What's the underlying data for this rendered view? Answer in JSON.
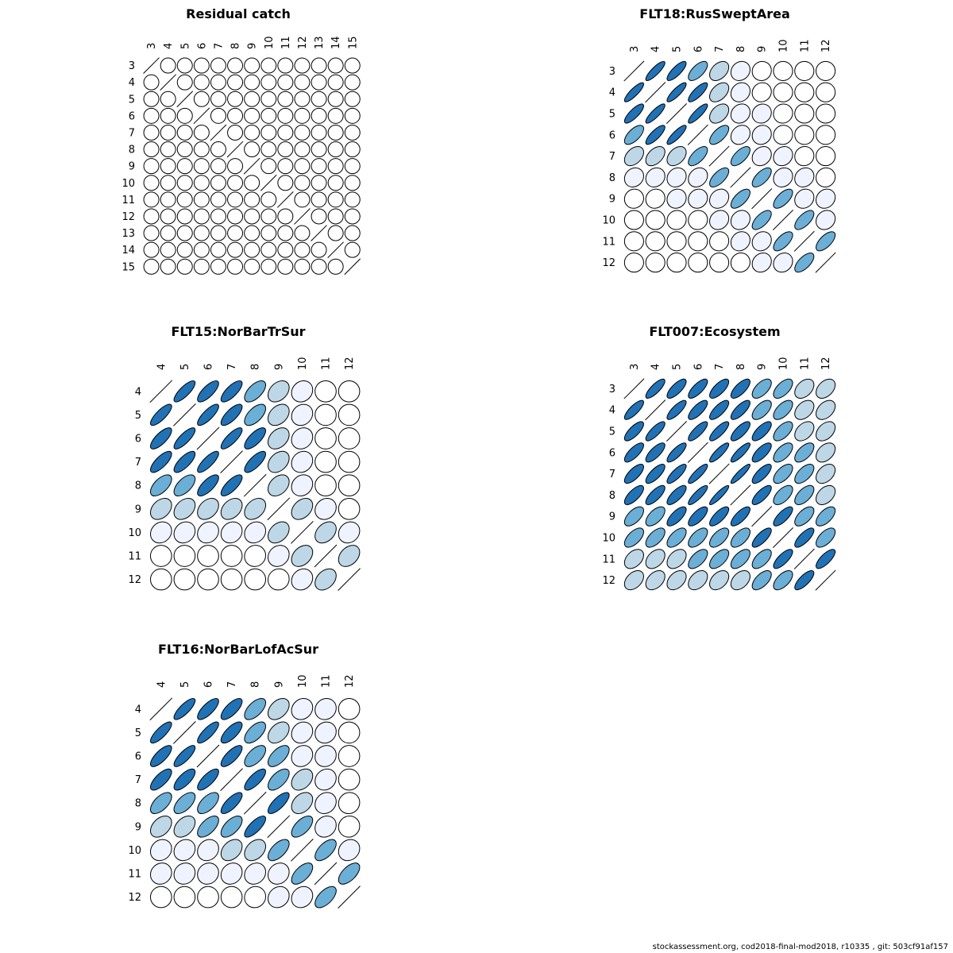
{
  "colors": {
    "0": "#ffffff",
    "1": "#eff3ff",
    "2": "#bdd7e7",
    "3": "#6baed6",
    "4": "#2171b5"
  },
  "footer": "stockassessment.org, cod2018-final-mod2018, r10335 , git: 503cf91af157",
  "chart_data": [
    {
      "type": "heatmap",
      "title": "Residual catch",
      "labels": [
        "3",
        "4",
        "5",
        "6",
        "7",
        "8",
        "9",
        "10",
        "11",
        "12",
        "13",
        "14",
        "15"
      ],
      "corr": [
        [
          1,
          0,
          0,
          0,
          0,
          0,
          0,
          0,
          0,
          0,
          0,
          0,
          0
        ],
        [
          0,
          1,
          0,
          0,
          0,
          0,
          0,
          0,
          0,
          0,
          0,
          0,
          0
        ],
        [
          0,
          0,
          1,
          0,
          0,
          0,
          0,
          0,
          0,
          0,
          0,
          0,
          0
        ],
        [
          0,
          0,
          0,
          1,
          0,
          0,
          0,
          0,
          0,
          0,
          0,
          0,
          0
        ],
        [
          0,
          0,
          0,
          0,
          1,
          0,
          0,
          0,
          0,
          0,
          0,
          0,
          0
        ],
        [
          0,
          0,
          0,
          0,
          0,
          1,
          0,
          0,
          0,
          0,
          0,
          0,
          0
        ],
        [
          0,
          0,
          0,
          0,
          0,
          0,
          1,
          0,
          0,
          0,
          0,
          0,
          0
        ],
        [
          0,
          0,
          0,
          0,
          0,
          0,
          0,
          1,
          0,
          0,
          0,
          0,
          0
        ],
        [
          0,
          0,
          0,
          0,
          0,
          0,
          0,
          0,
          1,
          0,
          0,
          0,
          0
        ],
        [
          0,
          0,
          0,
          0,
          0,
          0,
          0,
          0,
          0,
          1,
          0,
          0,
          0
        ],
        [
          0,
          0,
          0,
          0,
          0,
          0,
          0,
          0,
          0,
          0,
          1,
          0,
          0
        ],
        [
          0,
          0,
          0,
          0,
          0,
          0,
          0,
          0,
          0,
          0,
          0,
          1,
          0
        ],
        [
          0,
          0,
          0,
          0,
          0,
          0,
          0,
          0,
          0,
          0,
          0,
          0,
          1
        ]
      ]
    },
    {
      "type": "heatmap",
      "title": "FLT18:RusSweptArea",
      "labels": [
        "3",
        "4",
        "5",
        "6",
        "7",
        "8",
        "9",
        "10",
        "11",
        "12"
      ],
      "corr": [
        [
          1,
          0.85,
          0.8,
          0.65,
          0.4,
          0.15,
          0.05,
          0,
          0,
          0
        ],
        [
          0.85,
          1,
          0.85,
          0.8,
          0.45,
          0.15,
          0.08,
          0,
          0,
          0
        ],
        [
          0.8,
          0.85,
          1,
          0.85,
          0.4,
          0.15,
          0.1,
          0.05,
          0,
          0
        ],
        [
          0.65,
          0.8,
          0.85,
          1,
          0.65,
          0.2,
          0.1,
          0.05,
          0,
          0
        ],
        [
          0.4,
          0.45,
          0.4,
          0.65,
          1,
          0.65,
          0.2,
          0.15,
          0.05,
          0
        ],
        [
          0.15,
          0.15,
          0.15,
          0.2,
          0.65,
          1,
          0.65,
          0.15,
          0.15,
          0.05
        ],
        [
          0.05,
          0.08,
          0.1,
          0.1,
          0.2,
          0.65,
          1,
          0.65,
          0.15,
          0.15
        ],
        [
          0,
          0,
          0.05,
          0.05,
          0.15,
          0.15,
          0.65,
          1,
          0.65,
          0.15
        ],
        [
          0,
          0,
          0,
          0,
          0.05,
          0.15,
          0.15,
          0.65,
          1,
          0.65
        ],
        [
          0,
          0,
          0,
          0,
          0,
          0.05,
          0.15,
          0.15,
          0.65,
          1
        ]
      ]
    },
    {
      "type": "heatmap",
      "title": "FLT15:NorBarTrSur",
      "labels": [
        "4",
        "5",
        "6",
        "7",
        "8",
        "9",
        "10",
        "11",
        "12"
      ],
      "corr": [
        [
          1,
          0.8,
          0.75,
          0.75,
          0.6,
          0.35,
          0.15,
          0,
          0
        ],
        [
          0.8,
          1,
          0.8,
          0.75,
          0.6,
          0.35,
          0.15,
          0,
          0
        ],
        [
          0.75,
          0.8,
          1,
          0.8,
          0.72,
          0.35,
          0.15,
          0,
          0
        ],
        [
          0.75,
          0.75,
          0.8,
          1,
          0.75,
          0.35,
          0.15,
          0,
          0
        ],
        [
          0.6,
          0.6,
          0.72,
          0.75,
          1,
          0.35,
          0.15,
          0,
          0
        ],
        [
          0.35,
          0.35,
          0.35,
          0.35,
          0.35,
          1,
          0.35,
          0.15,
          0
        ],
        [
          0.15,
          0.15,
          0.15,
          0.15,
          0.15,
          0.35,
          1,
          0.35,
          0.15
        ],
        [
          0,
          0,
          0,
          0,
          0.05,
          0.15,
          0.35,
          1,
          0.35
        ],
        [
          0,
          0,
          0,
          0,
          0,
          0.05,
          0.15,
          0.35,
          1
        ]
      ]
    },
    {
      "type": "heatmap",
      "title": "FLT007:Ecosystem",
      "labels": [
        "3",
        "4",
        "5",
        "6",
        "7",
        "8",
        "9",
        "10",
        "11",
        "12"
      ],
      "corr": [
        [
          1,
          0.8,
          0.75,
          0.75,
          0.72,
          0.72,
          0.6,
          0.6,
          0.4,
          0.4
        ],
        [
          0.8,
          1,
          0.8,
          0.75,
          0.75,
          0.75,
          0.6,
          0.6,
          0.4,
          0.4
        ],
        [
          0.75,
          0.8,
          1,
          0.8,
          0.8,
          0.75,
          0.72,
          0.6,
          0.4,
          0.4
        ],
        [
          0.75,
          0.75,
          0.8,
          1,
          0.85,
          0.85,
          0.72,
          0.6,
          0.6,
          0.4
        ],
        [
          0.72,
          0.75,
          0.8,
          0.85,
          1,
          0.9,
          0.75,
          0.6,
          0.6,
          0.4
        ],
        [
          0.72,
          0.75,
          0.75,
          0.85,
          0.9,
          1,
          0.75,
          0.6,
          0.6,
          0.4
        ],
        [
          0.6,
          0.6,
          0.72,
          0.72,
          0.75,
          0.75,
          1,
          0.75,
          0.6,
          0.6
        ],
        [
          0.6,
          0.6,
          0.6,
          0.6,
          0.6,
          0.6,
          0.75,
          1,
          0.75,
          0.6
        ],
        [
          0.4,
          0.4,
          0.4,
          0.6,
          0.6,
          0.6,
          0.6,
          0.75,
          1,
          0.75
        ],
        [
          0.4,
          0.4,
          0.4,
          0.4,
          0.4,
          0.4,
          0.6,
          0.6,
          0.75,
          1
        ]
      ]
    },
    {
      "type": "heatmap",
      "title": "FLT16:NorBarLofAcSur",
      "labels": [
        "4",
        "5",
        "6",
        "7",
        "8",
        "9",
        "10",
        "11",
        "12"
      ],
      "corr": [
        [
          1,
          0.8,
          0.75,
          0.72,
          0.6,
          0.4,
          0.15,
          0.1,
          0
        ],
        [
          0.8,
          1,
          0.8,
          0.72,
          0.6,
          0.4,
          0.15,
          0.1,
          0
        ],
        [
          0.75,
          0.8,
          1,
          0.75,
          0.6,
          0.6,
          0.15,
          0.1,
          0
        ],
        [
          0.72,
          0.72,
          0.75,
          1,
          0.75,
          0.6,
          0.35,
          0.15,
          0
        ],
        [
          0.6,
          0.6,
          0.6,
          0.75,
          1,
          0.75,
          0.35,
          0.15,
          0.05
        ],
        [
          0.4,
          0.4,
          0.6,
          0.6,
          0.75,
          1,
          0.6,
          0.15,
          0.05
        ],
        [
          0.15,
          0.15,
          0.15,
          0.35,
          0.35,
          0.6,
          1,
          0.6,
          0.15
        ],
        [
          0.1,
          0.1,
          0.1,
          0.15,
          0.15,
          0.15,
          0.6,
          1,
          0.6
        ],
        [
          0,
          0,
          0,
          0,
          0.05,
          0.15,
          0.15,
          0.6,
          1
        ]
      ]
    }
  ]
}
